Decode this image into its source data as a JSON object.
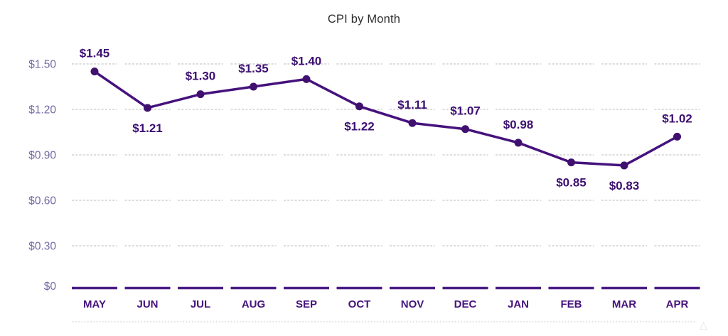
{
  "title": "CPI by Month",
  "watermark_glyph": "△",
  "chart_data": {
    "type": "line",
    "title": "CPI by Month",
    "xlabel": "",
    "ylabel": "",
    "categories": [
      "MAY",
      "JUN",
      "JUL",
      "AUG",
      "SEP",
      "OCT",
      "NOV",
      "DEC",
      "JAN",
      "FEB",
      "MAR",
      "APR"
    ],
    "values": [
      1.45,
      1.21,
      1.3,
      1.35,
      1.4,
      1.22,
      1.11,
      1.07,
      0.98,
      0.85,
      0.83,
      1.02
    ],
    "point_labels": [
      "$1.45",
      "$1.21",
      "$1.30",
      "$1.35",
      "$1.40",
      "$1.22",
      "$1.11",
      "$1.07",
      "$0.98",
      "$0.85",
      "$0.83",
      "$1.02"
    ],
    "label_side": [
      "above",
      "below",
      "above",
      "above",
      "above",
      "below",
      "above",
      "above",
      "above",
      "below",
      "below",
      "above"
    ],
    "y_ticks": [
      "$1.50",
      "$1.20",
      "$0.90",
      "$0.60",
      "$0.30",
      "$0"
    ],
    "y_tick_values": [
      1.5,
      1.2,
      0.9,
      0.6,
      0.3,
      0
    ],
    "ylim": [
      0,
      1.5
    ],
    "grid": "dashed-horizontal-per-column",
    "legend": "none",
    "colors": {
      "line": "#45127d",
      "marker": "#40106f",
      "point_label": "#3c1072",
      "month_label": "#45127d",
      "axis_label": "#7668a4",
      "gridline": "#c6c6c6",
      "zero_line": "#4a1d85",
      "footer_dots": "#cfcfcf",
      "title": "#2d2d2d",
      "background": "#ffffff",
      "watermark": "#e3e3e3"
    }
  }
}
